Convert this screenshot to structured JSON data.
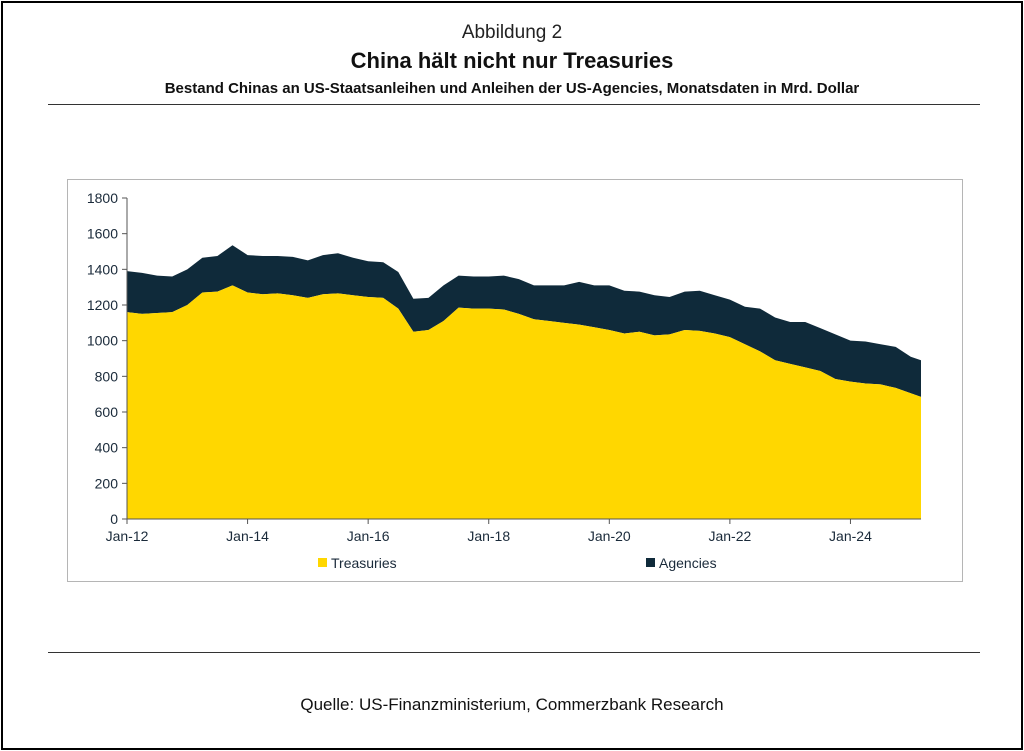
{
  "figure": {
    "label": "Abbildung 2",
    "title": "China hält nicht nur Treasuries",
    "subtitle": "Bestand Chinas an US-Staatsanleihen und Anleihen der US-Agencies, Monatsdaten in Mrd. Dollar",
    "source": "Quelle: US-Finanzministerium, Commerzbank Research"
  },
  "colors": {
    "treasuries": "#FFD700",
    "agencies": "#0F2A3A",
    "axis": "#555555",
    "text": "#1a2a3a"
  },
  "chart_data": {
    "type": "area",
    "stacked": true,
    "x_unit": "year",
    "x": [
      2012.0,
      2012.25,
      2012.5,
      2012.75,
      2013.0,
      2013.25,
      2013.5,
      2013.75,
      2014.0,
      2014.25,
      2014.5,
      2014.75,
      2015.0,
      2015.25,
      2015.5,
      2015.75,
      2016.0,
      2016.25,
      2016.5,
      2016.75,
      2017.0,
      2017.25,
      2017.5,
      2017.75,
      2018.0,
      2018.25,
      2018.5,
      2018.75,
      2019.0,
      2019.25,
      2019.5,
      2019.75,
      2020.0,
      2020.25,
      2020.5,
      2020.75,
      2021.0,
      2021.25,
      2021.5,
      2021.75,
      2022.0,
      2022.25,
      2022.5,
      2022.75,
      2023.0,
      2023.25,
      2023.5,
      2023.75,
      2024.0,
      2024.25,
      2024.5,
      2024.75,
      2025.0,
      2025.17
    ],
    "series": [
      {
        "name": "Treasuries",
        "values": [
          1160,
          1150,
          1155,
          1160,
          1200,
          1270,
          1275,
          1310,
          1270,
          1260,
          1265,
          1255,
          1240,
          1260,
          1265,
          1255,
          1245,
          1240,
          1180,
          1050,
          1060,
          1110,
          1185,
          1180,
          1180,
          1175,
          1150,
          1120,
          1110,
          1100,
          1090,
          1075,
          1060,
          1040,
          1050,
          1030,
          1035,
          1060,
          1055,
          1040,
          1020,
          980,
          940,
          890,
          870,
          850,
          830,
          785,
          770,
          760,
          755,
          735,
          705,
          685
        ]
      },
      {
        "name": "Agencies",
        "values": [
          230,
          230,
          210,
          200,
          200,
          195,
          200,
          225,
          210,
          215,
          210,
          215,
          210,
          220,
          225,
          210,
          200,
          200,
          205,
          185,
          180,
          200,
          180,
          180,
          180,
          190,
          195,
          190,
          200,
          210,
          240,
          235,
          250,
          240,
          225,
          225,
          210,
          215,
          225,
          215,
          210,
          210,
          240,
          240,
          235,
          255,
          240,
          250,
          230,
          235,
          225,
          230,
          205,
          205
        ]
      }
    ],
    "xticks": [
      {
        "x": 2012,
        "label": "Jan-12"
      },
      {
        "x": 2014,
        "label": "Jan-14"
      },
      {
        "x": 2016,
        "label": "Jan-16"
      },
      {
        "x": 2018,
        "label": "Jan-18"
      },
      {
        "x": 2020,
        "label": "Jan-20"
      },
      {
        "x": 2022,
        "label": "Jan-22"
      },
      {
        "x": 2024,
        "label": "Jan-24"
      }
    ],
    "yticks": [
      0,
      200,
      400,
      600,
      800,
      1000,
      1200,
      1400,
      1600,
      1800
    ],
    "ylim": [
      0,
      1800
    ],
    "xlim": [
      2012.0,
      2025.17
    ],
    "legend": {
      "placement": "bottom",
      "items": [
        "Treasuries",
        "Agencies"
      ]
    },
    "grid": false
  }
}
